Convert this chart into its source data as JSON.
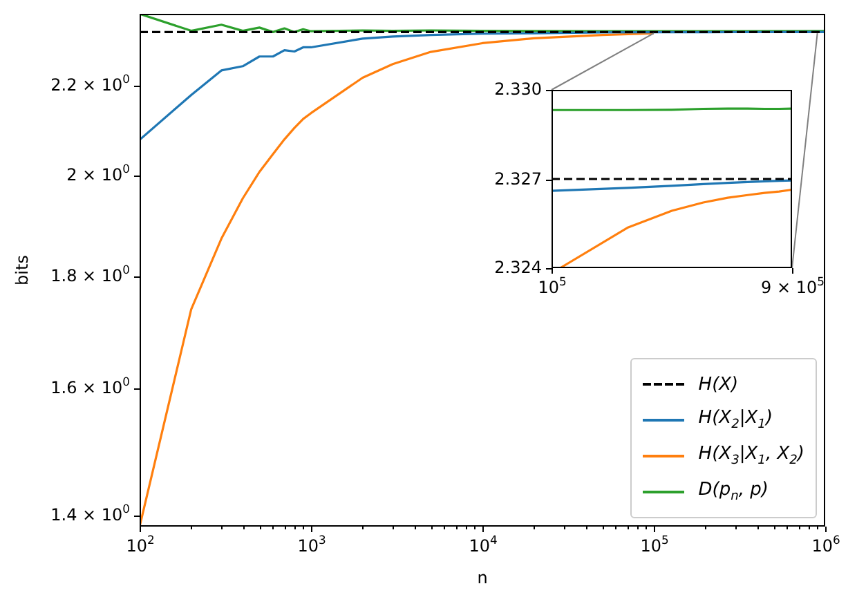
{
  "chart_data": [
    {
      "type": "line",
      "xlabel": "n",
      "ylabel": "bits",
      "log": "xy",
      "legend": "bottom right",
      "xlim": [
        100,
        1000000
      ],
      "ylim": [
        1.384,
        2.372
      ],
      "xticks": [
        {
          "value": 100,
          "label": "10$^{2}$"
        },
        {
          "value": 200,
          "label": null
        },
        {
          "value": 300,
          "label": null
        },
        {
          "value": 400,
          "label": null
        },
        {
          "value": 500,
          "label": null
        },
        {
          "value": 600,
          "label": null
        },
        {
          "value": 700,
          "label": null
        },
        {
          "value": 800,
          "label": null
        },
        {
          "value": 900,
          "label": null
        },
        {
          "value": 1000,
          "label": "10$^{3}$"
        },
        {
          "value": 2000,
          "label": null
        },
        {
          "value": 3000,
          "label": null
        },
        {
          "value": 4000,
          "label": null
        },
        {
          "value": 5000,
          "label": null
        },
        {
          "value": 6000,
          "label": null
        },
        {
          "value": 7000,
          "label": null
        },
        {
          "value": 8000,
          "label": null
        },
        {
          "value": 9000,
          "label": null
        },
        {
          "value": 10000,
          "label": "10$^{4}$"
        },
        {
          "value": 20000,
          "label": null
        },
        {
          "value": 30000,
          "label": null
        },
        {
          "value": 40000,
          "label": null
        },
        {
          "value": 50000,
          "label": null
        },
        {
          "value": 60000,
          "label": null
        },
        {
          "value": 70000,
          "label": null
        },
        {
          "value": 80000,
          "label": null
        },
        {
          "value": 90000,
          "label": null
        },
        {
          "value": 100000,
          "label": "10$^{5}$"
        },
        {
          "value": 200000,
          "label": null
        },
        {
          "value": 300000,
          "label": null
        },
        {
          "value": 400000,
          "label": null
        },
        {
          "value": 500000,
          "label": null
        },
        {
          "value": 600000,
          "label": null
        },
        {
          "value": 700000,
          "label": null
        },
        {
          "value": 800000,
          "label": null
        },
        {
          "value": 900000,
          "label": null
        },
        {
          "value": 1000000,
          "label": "10$^{6}$"
        }
      ],
      "yticks": [
        {
          "value": 1.4,
          "label": "1.4 × 10$^{0}$"
        },
        {
          "value": 1.6,
          "label": "1.6 × 10$^{0}$"
        },
        {
          "value": 1.8,
          "label": "1.8 × 10$^{0}$"
        },
        {
          "value": 2,
          "label": "2 × 10$^{0}$"
        },
        {
          "value": 2.2,
          "label": "2.2 × 10$^{0}$"
        }
      ],
      "x": [
        100,
        200,
        300,
        400,
        500,
        600,
        700,
        800,
        900,
        1000,
        2000,
        3000,
        5000,
        10000,
        20000,
        50000,
        100000,
        200000,
        300000,
        1000000
      ],
      "series": [
        {
          "name": "H(X)",
          "color": "#000000",
          "line_style": "dashed",
          "x": [
            100,
            1000000
          ],
          "values": [
            2.327,
            2.327
          ]
        },
        {
          "name": "H(X$_{2}$|X$_{1}$)",
          "color": "#1f77b4",
          "values": [
            2.078,
            2.178,
            2.235,
            2.245,
            2.268,
            2.268,
            2.283,
            2.28,
            2.29,
            2.29,
            2.311,
            2.316,
            2.32,
            2.323,
            2.324,
            2.3262,
            2.3266,
            2.3267,
            2.3268,
            2.327
          ]
        },
        {
          "name": "H(X$_{3}$|X$_{1}$, X$_{2}$)",
          "color": "#ff7f0e",
          "values": [
            1.384,
            1.739,
            1.873,
            1.954,
            2.009,
            2.047,
            2.079,
            2.104,
            2.124,
            2.137,
            2.218,
            2.25,
            2.279,
            2.3,
            2.312,
            2.32,
            2.3238,
            null,
            null,
            null
          ]
        },
        {
          "name": "D(p$_{n}$, p)",
          "color": "#2ca02c",
          "values": [
            2.372,
            2.33,
            2.345,
            2.33,
            2.338,
            2.327,
            2.336,
            2.327,
            2.334,
            2.329,
            2.331,
            2.33,
            2.331,
            2.33,
            2.3295,
            2.3293,
            2.3293,
            2.3293,
            2.3293,
            2.3294
          ]
        }
      ]
    },
    {
      "type": "line",
      "log": "x",
      "xlim": [
        100000,
        900000
      ],
      "ylim": [
        2.324,
        2.33
      ],
      "xticks": [
        {
          "value": 100000,
          "label": "10$^{5}$"
        },
        {
          "value": 900000,
          "label": "9 × 10$^{5}$"
        }
      ],
      "yticks": [
        {
          "value": 2.324,
          "label": "2.324"
        },
        {
          "value": 2.327,
          "label": "2.327"
        },
        {
          "value": 2.33,
          "label": "2.330"
        }
      ],
      "x": [
        100000,
        200000,
        300000,
        400000,
        500000,
        600000,
        700000,
        800000,
        900000
      ],
      "series": [
        {
          "color": "#000000",
          "line_style": "dashed",
          "x": [
            100000,
            900000
          ],
          "values": [
            2.327,
            2.327
          ]
        },
        {
          "color": "#1f77b4",
          "values": [
            2.3266,
            2.3267,
            2.32677,
            2.32683,
            2.32687,
            2.3269,
            2.32692,
            2.32694,
            2.32695
          ]
        },
        {
          "color": "#ff7f0e",
          "x": [
            108000,
            200000,
            300000,
            400000,
            500000,
            600000,
            700000,
            800000,
            900000
          ],
          "values": [
            2.324,
            2.32536,
            2.32593,
            2.32621,
            2.32637,
            2.32646,
            2.32653,
            2.32658,
            2.32664
          ]
        },
        {
          "color": "#2ca02c",
          "values": [
            2.32932,
            2.32932,
            2.32933,
            2.32936,
            2.32937,
            2.32937,
            2.32936,
            2.32936,
            2.32937
          ]
        }
      ]
    }
  ]
}
